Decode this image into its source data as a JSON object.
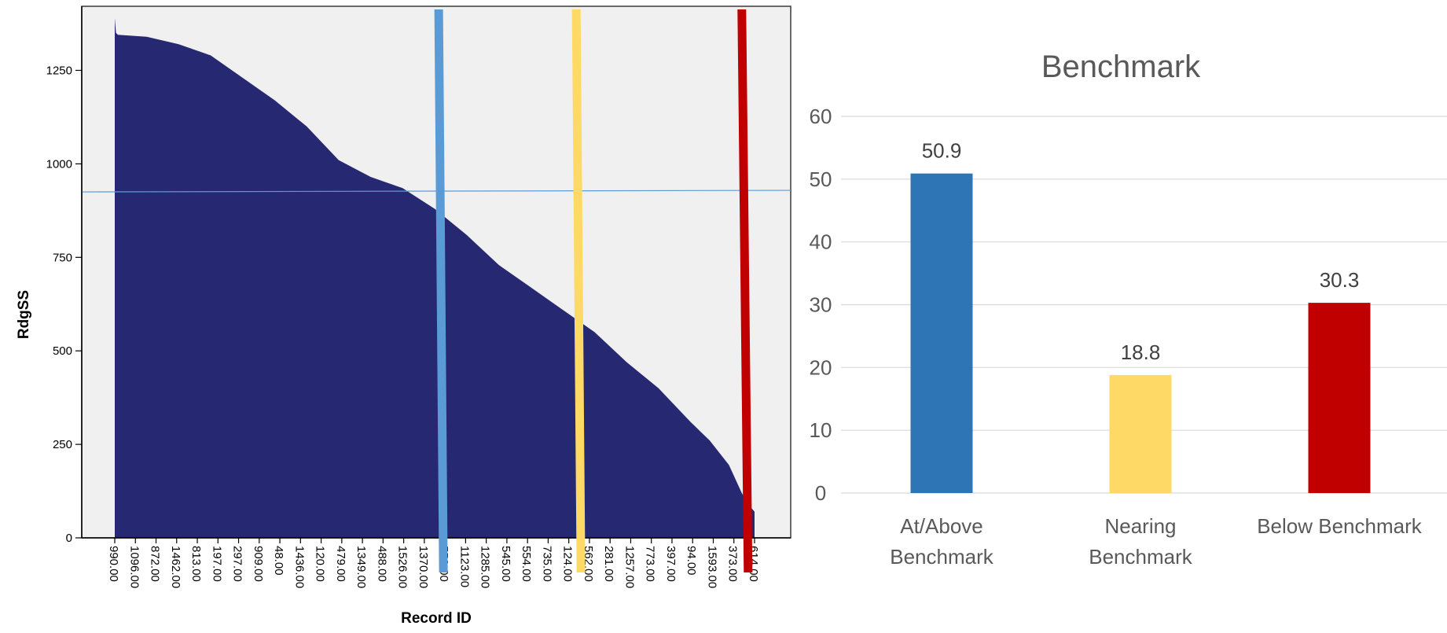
{
  "chart_data": [
    {
      "type": "area",
      "title": "",
      "xlabel": "Record ID",
      "ylabel": "RdgSS",
      "ylim": [
        0,
        1400
      ],
      "y_ticks": [
        0,
        250,
        500,
        750,
        1000,
        1250
      ],
      "x_tick_labels": [
        "990.00",
        "1096.00",
        "872.00",
        "1462.00",
        "813.00",
        "197.00",
        "297.00",
        "909.00",
        "48.00",
        "1436.00",
        "120.00",
        "479.00",
        "1349.00",
        "488.00",
        "1526.00",
        "1370.00",
        "553.00",
        "1123.00",
        "1285.00",
        "545.00",
        "554.00",
        "735.00",
        "124.00",
        "562.00",
        "281.00",
        "1257.00",
        "773.00",
        "397.00",
        "94.00",
        "1593.00",
        "373.00",
        "614.00"
      ],
      "series": [
        {
          "x_frac": [
            0,
            0.002,
            0.005,
            0.05,
            0.1,
            0.15,
            0.2,
            0.25,
            0.3,
            0.35,
            0.4,
            0.45,
            0.5,
            0.55,
            0.6,
            0.65,
            0.7,
            0.75,
            0.8,
            0.85,
            0.9,
            0.93,
            0.96,
            0.98,
            0.99,
            0.995,
            1.0
          ],
          "values": [
            1390,
            1350,
            1345,
            1340,
            1320,
            1290,
            1230,
            1170,
            1100,
            1010,
            965,
            935,
            880,
            810,
            730,
            670,
            610,
            550,
            470,
            400,
            310,
            260,
            195,
            120,
            90,
            80,
            70
          ]
        }
      ],
      "reference_line": {
        "orientation": "horizontal",
        "value": 925,
        "color": "#5b9bd5"
      },
      "vertical_markers": [
        {
          "x_frac": 0.51,
          "color": "#5b9bd5"
        },
        {
          "x_frac": 0.725,
          "color": "#ffd966"
        },
        {
          "x_frac": 0.985,
          "color": "#c00000"
        }
      ],
      "colors": {
        "area": "#262872",
        "plot_background": "#f0f0f0"
      },
      "grid": false
    },
    {
      "type": "bar",
      "title": "Benchmark",
      "categories": [
        "At/Above Benchmark",
        "Nearing Benchmark",
        "Below Benchmark"
      ],
      "category_lines": [
        [
          "At/Above",
          "Benchmark"
        ],
        [
          "Nearing",
          "Benchmark"
        ],
        [
          "Below Benchmark"
        ]
      ],
      "values": [
        50.9,
        18.8,
        30.3
      ],
      "data_labels": [
        "50.9",
        "18.8",
        "30.3"
      ],
      "colors": [
        "#2e75b6",
        "#ffd966",
        "#c00000"
      ],
      "ylim": [
        0,
        60
      ],
      "y_ticks": [
        0,
        10,
        20,
        30,
        40,
        50,
        60
      ],
      "grid": true,
      "legend": "none"
    }
  ]
}
